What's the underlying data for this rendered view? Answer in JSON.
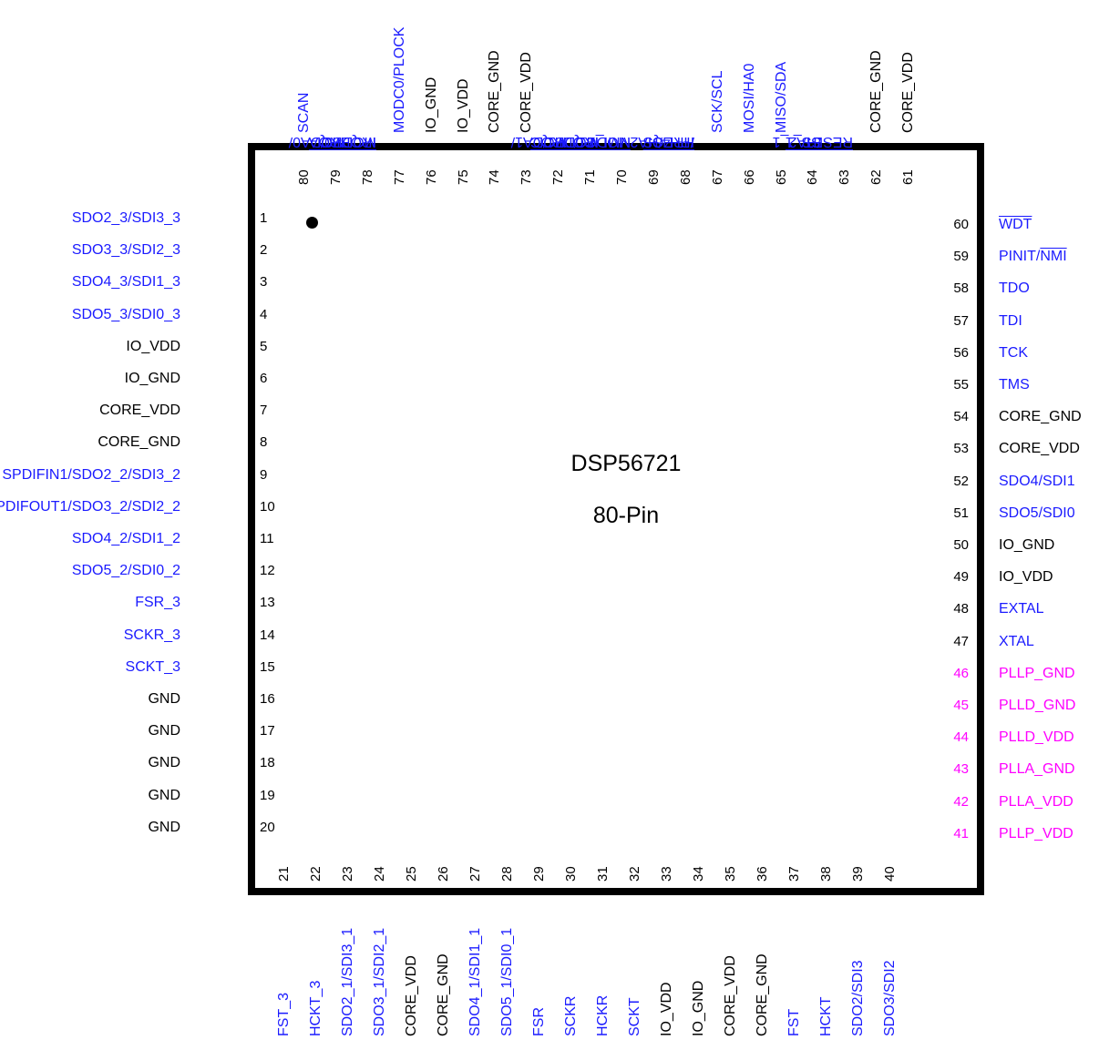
{
  "title": "DSP56721",
  "subtitle": "80-Pin",
  "colors": {
    "blue": "#1a1aff",
    "black": "#000000",
    "magenta": "#ff00ff"
  },
  "left_pins": [
    {
      "num": "1",
      "label": "SDO2_3/SDI3_3",
      "color": "blue"
    },
    {
      "num": "2",
      "label": "SDO3_3/SDI2_3",
      "color": "blue"
    },
    {
      "num": "3",
      "label": "SDO4_3/SDI1_3",
      "color": "blue"
    },
    {
      "num": "4",
      "label": "SDO5_3/SDI0_3",
      "color": "blue"
    },
    {
      "num": "5",
      "label": "IO_VDD",
      "color": "black"
    },
    {
      "num": "6",
      "label": "IO_GND",
      "color": "black"
    },
    {
      "num": "7",
      "label": "CORE_VDD",
      "color": "black"
    },
    {
      "num": "8",
      "label": "CORE_GND",
      "color": "black"
    },
    {
      "num": "9",
      "label": "SPDIFIN1/SDO2_2/SDI3_2",
      "color": "blue"
    },
    {
      "num": "10",
      "label": "SPDIFOUT1/SDO3_2/SDI2_2",
      "color": "blue"
    },
    {
      "num": "11",
      "label": "SDO4_2/SDI1_2",
      "color": "blue"
    },
    {
      "num": "12",
      "label": "SDO5_2/SDI0_2",
      "color": "blue"
    },
    {
      "num": "13",
      "label": "FSR_3",
      "color": "blue"
    },
    {
      "num": "14",
      "label": "SCKR_3",
      "color": "blue"
    },
    {
      "num": "15",
      "label": "SCKT_3",
      "color": "blue"
    },
    {
      "num": "16",
      "label": "GND",
      "color": "black"
    },
    {
      "num": "17",
      "label": "GND",
      "color": "black"
    },
    {
      "num": "18",
      "label": "GND",
      "color": "black"
    },
    {
      "num": "19",
      "label": "GND",
      "color": "black"
    },
    {
      "num": "20",
      "label": "GND",
      "color": "black"
    }
  ],
  "right_pins": [
    {
      "num": "60",
      "label": "WDT",
      "color": "blue",
      "over": "WDT"
    },
    {
      "num": "59",
      "label": "PINIT/NMI",
      "color": "blue",
      "pre": "PINIT/",
      "over": "NMI"
    },
    {
      "num": "58",
      "label": "TDO",
      "color": "blue"
    },
    {
      "num": "57",
      "label": "TDI",
      "color": "blue"
    },
    {
      "num": "56",
      "label": "TCK",
      "color": "blue"
    },
    {
      "num": "55",
      "label": "TMS",
      "color": "blue"
    },
    {
      "num": "54",
      "label": "CORE_GND",
      "color": "black"
    },
    {
      "num": "53",
      "label": "CORE_VDD",
      "color": "black"
    },
    {
      "num": "52",
      "label": "SDO4/SDI1",
      "color": "blue"
    },
    {
      "num": "51",
      "label": "SDO5/SDI0",
      "color": "blue"
    },
    {
      "num": "50",
      "label": "IO_GND",
      "color": "black"
    },
    {
      "num": "49",
      "label": "IO_VDD",
      "color": "black"
    },
    {
      "num": "48",
      "label": "EXTAL",
      "color": "blue"
    },
    {
      "num": "47",
      "label": "XTAL",
      "color": "blue"
    },
    {
      "num": "46",
      "label": "PLLP_GND",
      "color": "magenta"
    },
    {
      "num": "45",
      "label": "PLLD_GND",
      "color": "magenta"
    },
    {
      "num": "44",
      "label": "PLLD_VDD",
      "color": "magenta"
    },
    {
      "num": "43",
      "label": "PLLA_GND",
      "color": "magenta"
    },
    {
      "num": "42",
      "label": "PLLA_VDD",
      "color": "magenta"
    },
    {
      "num": "41",
      "label": "PLLP_VDD",
      "color": "magenta"
    }
  ],
  "top_pins": [
    {
      "num": "80",
      "label": "SCAN",
      "color": "blue"
    },
    {
      "num": "79",
      "label": "MODA0/IRQA",
      "color": "blue",
      "pre": "MODA0/",
      "over": "IRQA"
    },
    {
      "num": "78",
      "label": "MODB0/IRQB",
      "color": "blue",
      "pre": "MODB0/",
      "over": "IRQB"
    },
    {
      "num": "77",
      "label": "MODC0/PLOCK",
      "color": "blue"
    },
    {
      "num": "76",
      "label": "IO_GND",
      "color": "black"
    },
    {
      "num": "75",
      "label": "IO_VDD",
      "color": "black"
    },
    {
      "num": "74",
      "label": "CORE_GND",
      "color": "black"
    },
    {
      "num": "73",
      "label": "CORE_VDD",
      "color": "black"
    },
    {
      "num": "72",
      "label": "MODA1/IRQC",
      "color": "blue",
      "pre": "MODA1/",
      "over": "IRQC"
    },
    {
      "num": "71",
      "label": "MODB1/IRQD",
      "color": "blue",
      "pre": "MODB1/",
      "over": "IRQD"
    },
    {
      "num": "70",
      "label": "MODC1/NMI_1",
      "color": "blue",
      "pre": "MODC1/",
      "over": "NMI_1"
    },
    {
      "num": "69",
      "label": "SS/HA2",
      "color": "blue",
      "over": "SS",
      "post": "/HA2"
    },
    {
      "num": "68",
      "label": "HREQ/PH4",
      "color": "blue",
      "over": "HREQ",
      "post": "/PH4"
    },
    {
      "num": "67",
      "label": "SCK/SCL",
      "color": "blue"
    },
    {
      "num": "66",
      "label": "MOSI/HA0",
      "color": "blue"
    },
    {
      "num": "65",
      "label": "MISO/SDA",
      "color": "blue"
    },
    {
      "num": "64",
      "label": "SS_1/HA2_1",
      "color": "blue",
      "over": "SS_1",
      "post": "/HA2_1"
    },
    {
      "num": "63",
      "label": "RESET",
      "color": "blue",
      "over": "RESET"
    },
    {
      "num": "62",
      "label": "CORE_GND",
      "color": "black"
    },
    {
      "num": "61",
      "label": "CORE_VDD",
      "color": "black"
    }
  ],
  "bottom_pins": [
    {
      "num": "21",
      "label": "FST_3",
      "color": "blue"
    },
    {
      "num": "22",
      "label": "HCKT_3",
      "color": "blue"
    },
    {
      "num": "23",
      "label": "SDO2_1/SDI3_1",
      "color": "blue"
    },
    {
      "num": "24",
      "label": "SDO3_1/SDI2_1",
      "color": "blue"
    },
    {
      "num": "25",
      "label": "CORE_VDD",
      "color": "black"
    },
    {
      "num": "26",
      "label": "CORE_GND",
      "color": "black"
    },
    {
      "num": "27",
      "label": "SDO4_1/SDI1_1",
      "color": "blue"
    },
    {
      "num": "28",
      "label": "SDO5_1/SDI0_1",
      "color": "blue"
    },
    {
      "num": "29",
      "label": "FSR",
      "color": "blue"
    },
    {
      "num": "30",
      "label": "SCKR",
      "color": "blue"
    },
    {
      "num": "31",
      "label": "HCKR",
      "color": "blue"
    },
    {
      "num": "32",
      "label": "SCKT",
      "color": "blue"
    },
    {
      "num": "33",
      "label": "IO_VDD",
      "color": "black"
    },
    {
      "num": "34",
      "label": "IO_GND",
      "color": "black"
    },
    {
      "num": "35",
      "label": "CORE_VDD",
      "color": "black"
    },
    {
      "num": "36",
      "label": "CORE_GND",
      "color": "black"
    },
    {
      "num": "37",
      "label": "FST",
      "color": "blue"
    },
    {
      "num": "38",
      "label": "HCKT",
      "color": "blue"
    },
    {
      "num": "39",
      "label": "SDO2/SDI3",
      "color": "blue"
    },
    {
      "num": "40",
      "label": "SDO3/SDI2",
      "color": "blue"
    }
  ]
}
